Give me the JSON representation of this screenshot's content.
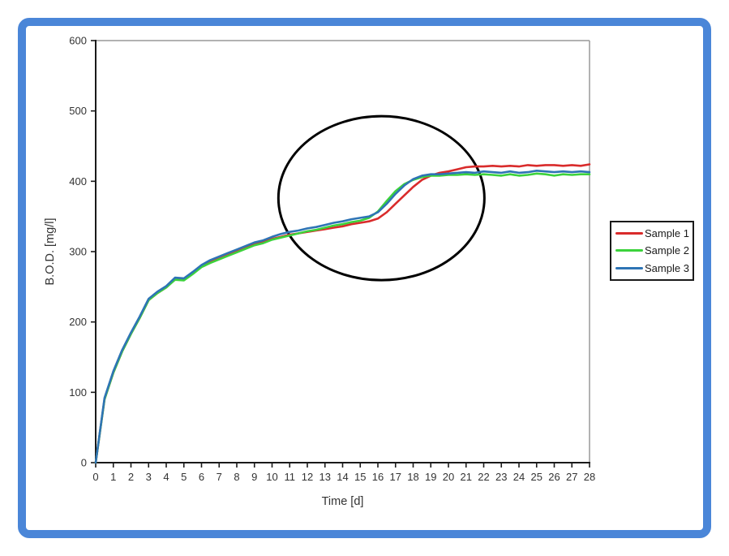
{
  "frame": {
    "border_color": "#4a86d8",
    "background": "#ffffff"
  },
  "chart_data": {
    "type": "line",
    "title": "",
    "xlabel": "Time [d]",
    "ylabel": "B.O.D. [mg/l]",
    "xlim": [
      0,
      28
    ],
    "ylim": [
      0,
      600
    ],
    "x_ticks": [
      0,
      1,
      2,
      3,
      4,
      5,
      6,
      7,
      8,
      9,
      10,
      11,
      12,
      13,
      14,
      15,
      16,
      17,
      18,
      19,
      20,
      21,
      22,
      23,
      24,
      25,
      26,
      27,
      28
    ],
    "y_ticks": [
      0,
      100,
      200,
      300,
      400,
      500,
      600
    ],
    "grid": false,
    "legend_position": "right",
    "axis_text_color": "#333333",
    "axis_line_color": "#1a1a1a",
    "plot_border_color": "#999999",
    "x_start": 0,
    "x_step": 0.5,
    "series": [
      {
        "name": "Sample 1",
        "color": "#d92b2b",
        "values": [
          0,
          90,
          128,
          158,
          183,
          206,
          231,
          241,
          249,
          261,
          260,
          269,
          279,
          285,
          290,
          295,
          300,
          305,
          312,
          314,
          318,
          321,
          324,
          326,
          328,
          330,
          332,
          334,
          336,
          339,
          341,
          343,
          347,
          356,
          368,
          380,
          392,
          402,
          408,
          412,
          414,
          417,
          420,
          421,
          421,
          422,
          421,
          422,
          421,
          423,
          422,
          423,
          423,
          422,
          423,
          422,
          424
        ]
      },
      {
        "name": "Sample 2",
        "color": "#3cd23c",
        "values": [
          0,
          90,
          128,
          158,
          183,
          206,
          231,
          241,
          249,
          260,
          259,
          268,
          278,
          284,
          289,
          294,
          299,
          304,
          309,
          312,
          317,
          320,
          323,
          326,
          329,
          331,
          334,
          337,
          339,
          342,
          344,
          348,
          357,
          372,
          386,
          396,
          402,
          406,
          408,
          408,
          409,
          409,
          410,
          409,
          410,
          409,
          408,
          410,
          408,
          409,
          411,
          410,
          408,
          410,
          409,
          410,
          410
        ]
      },
      {
        "name": "Sample 3",
        "color": "#2e74b5",
        "values": [
          0,
          92,
          130,
          160,
          185,
          208,
          233,
          243,
          251,
          263,
          262,
          271,
          281,
          288,
          293,
          298,
          303,
          308,
          313,
          316,
          321,
          325,
          328,
          330,
          333,
          335,
          338,
          341,
          343,
          346,
          348,
          350,
          356,
          368,
          382,
          394,
          403,
          408,
          410,
          410,
          411,
          412,
          413,
          412,
          414,
          413,
          412,
          414,
          412,
          413,
          415,
          414,
          413,
          414,
          413,
          414,
          413
        ]
      }
    ],
    "annotation": {
      "type": "ellipse",
      "cx": 16.2,
      "cy": 376,
      "rx": 5.84,
      "ry": 116.5,
      "color": "#000000",
      "stroke_width": 3
    }
  },
  "legend": {
    "items": [
      {
        "label": "Sample 1",
        "color": "#d92b2b"
      },
      {
        "label": "Sample 2",
        "color": "#3cd23c"
      },
      {
        "label": "Sample 3",
        "color": "#2e74b5"
      }
    ]
  }
}
